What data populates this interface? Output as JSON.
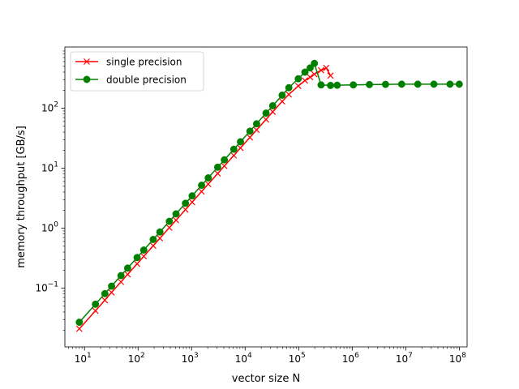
{
  "chart_data": {
    "type": "line",
    "title": "",
    "xlabel": "vector size N",
    "ylabel": "memory throughput [GB/s]",
    "x_scale": "log",
    "y_scale": "log",
    "xlim": [
      4.3,
      140000000
    ],
    "ylim": [
      0.0105,
      1050
    ],
    "grid": false,
    "legend_position": "upper-left",
    "x_ticks": [
      {
        "value": 10,
        "base": "10",
        "exp": "1"
      },
      {
        "value": 100,
        "base": "10",
        "exp": "2"
      },
      {
        "value": 1000,
        "base": "10",
        "exp": "3"
      },
      {
        "value": 10000,
        "base": "10",
        "exp": "4"
      },
      {
        "value": 100000,
        "base": "10",
        "exp": "5"
      },
      {
        "value": 1000000,
        "base": "10",
        "exp": "6"
      },
      {
        "value": 10000000,
        "base": "10",
        "exp": "7"
      },
      {
        "value": 100000000,
        "base": "10",
        "exp": "8"
      }
    ],
    "y_ticks": [
      {
        "value": 0.1,
        "base": "10",
        "exp": "−1"
      },
      {
        "value": 1,
        "base": "10",
        "exp": "0"
      },
      {
        "value": 10,
        "base": "10",
        "exp": "1"
      },
      {
        "value": 100,
        "base": "10",
        "exp": "2"
      }
    ],
    "series": [
      {
        "name": "single precision",
        "color": "#ff0000",
        "marker": "x",
        "x": [
          8,
          16,
          24,
          32,
          48,
          64,
          96,
          128,
          192,
          256,
          384,
          512,
          768,
          1024,
          1536,
          2048,
          3072,
          4096,
          6144,
          8192,
          12288,
          16384,
          24576,
          32768,
          49152,
          65536,
          98304,
          131072,
          163840,
          196608,
          262144,
          327680,
          393216
        ],
        "y": [
          0.021,
          0.042,
          0.063,
          0.085,
          0.127,
          0.17,
          0.254,
          0.34,
          0.51,
          0.68,
          1.02,
          1.36,
          2.04,
          2.72,
          4.08,
          5.44,
          8.16,
          10.9,
          16.3,
          21.8,
          32.6,
          43.5,
          65,
          87,
          130,
          170,
          235,
          290,
          330,
          370,
          430,
          470,
          350
        ]
      },
      {
        "name": "double precision",
        "color": "#008000",
        "marker": "o",
        "x": [
          8,
          16,
          24,
          32,
          48,
          64,
          96,
          128,
          192,
          256,
          384,
          512,
          768,
          1024,
          1536,
          2048,
          3072,
          4096,
          6144,
          8192,
          12288,
          16384,
          24576,
          32768,
          49152,
          65536,
          98304,
          131072,
          163840,
          196608,
          262144,
          393216,
          524288,
          1048576,
          2097152,
          4194304,
          8388608,
          16777216,
          33554432,
          67108864,
          100000000
        ],
        "y": [
          0.027,
          0.054,
          0.081,
          0.108,
          0.162,
          0.216,
          0.324,
          0.432,
          0.648,
          0.864,
          1.3,
          1.73,
          2.6,
          3.46,
          5.2,
          6.9,
          10.4,
          13.8,
          20.7,
          27.6,
          41.4,
          55,
          83,
          110,
          165,
          220,
          310,
          400,
          470,
          560,
          245,
          240,
          242,
          245,
          248,
          250,
          252,
          252,
          252,
          252,
          252
        ]
      }
    ]
  }
}
